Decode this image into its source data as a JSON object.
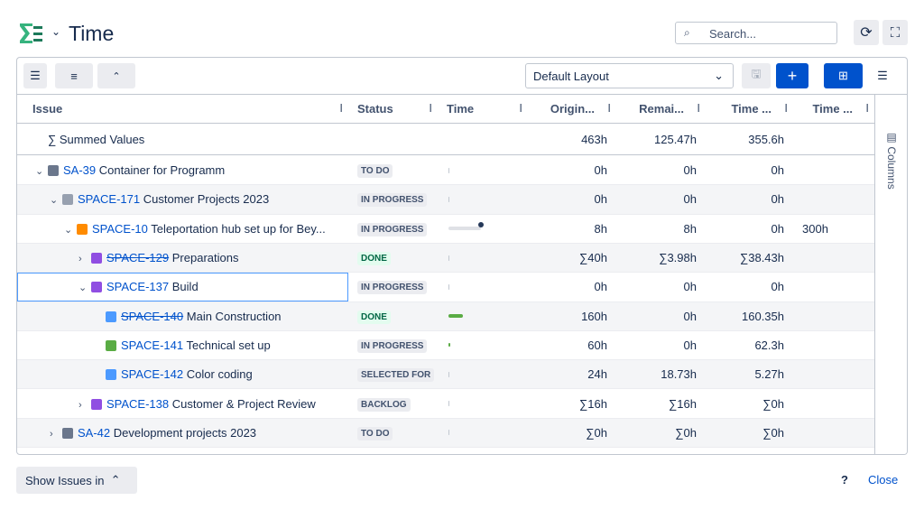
{
  "header": {
    "title": "Time",
    "search_placeholder": "Search..."
  },
  "toolbar": {
    "layout": "Default Layout"
  },
  "table": {
    "columns": [
      "Issue",
      "Status",
      "Time",
      "Origin...",
      "Remai...",
      "Time ...",
      "Time ..."
    ],
    "summary": {
      "label": "∑ Summed Values",
      "original": "463h",
      "remaining": "125.47h",
      "spent": "355.6h"
    },
    "rows": [
      {
        "key": "SA-39",
        "summary": "Container for Programm",
        "status": "TO DO",
        "original": "0h",
        "remaining": "0h",
        "spent": "0h"
      },
      {
        "key": "SPACE-171",
        "summary": "Customer Projects 2023",
        "status": "IN PROGRESS",
        "original": "0h",
        "remaining": "0h",
        "spent": "0h"
      },
      {
        "key": "SPACE-10",
        "summary": "Teleportation hub set up for Bey...",
        "status": "IN PROGRESS",
        "original": "8h",
        "remaining": "8h",
        "spent": "0h",
        "extra": "300h"
      },
      {
        "key": "SPACE-129",
        "summary": "Preparations",
        "status": "DONE",
        "original": "∑40h",
        "remaining": "∑3.98h",
        "spent": "∑38.43h"
      },
      {
        "key": "SPACE-137",
        "summary": "Build",
        "status": "IN PROGRESS",
        "original": "0h",
        "remaining": "0h",
        "spent": "0h"
      },
      {
        "key": "SPACE-140",
        "summary": "Main Construction",
        "status": "DONE",
        "original": "160h",
        "remaining": "0h",
        "spent": "160.35h"
      },
      {
        "key": "SPACE-141",
        "summary": "Technical set up",
        "status": "IN PROGRESS",
        "original": "60h",
        "remaining": "0h",
        "spent": "62.3h"
      },
      {
        "key": "SPACE-142",
        "summary": "Color coding",
        "status": "SELECTED FOR",
        "original": "24h",
        "remaining": "18.73h",
        "spent": "5.27h"
      },
      {
        "key": "SPACE-138",
        "summary": "Customer & Project Review",
        "status": "BACKLOG",
        "original": "∑16h",
        "remaining": "∑16h",
        "spent": "∑0h"
      },
      {
        "key": "SA-42",
        "summary": "Development projects 2023",
        "status": "TO DO",
        "original": "∑0h",
        "remaining": "∑0h",
        "spent": "∑0h"
      }
    ]
  },
  "side_panel": {
    "label": "Columns"
  },
  "footer": {
    "show_issues": "Show Issues in",
    "help": "?",
    "close": "Close"
  }
}
